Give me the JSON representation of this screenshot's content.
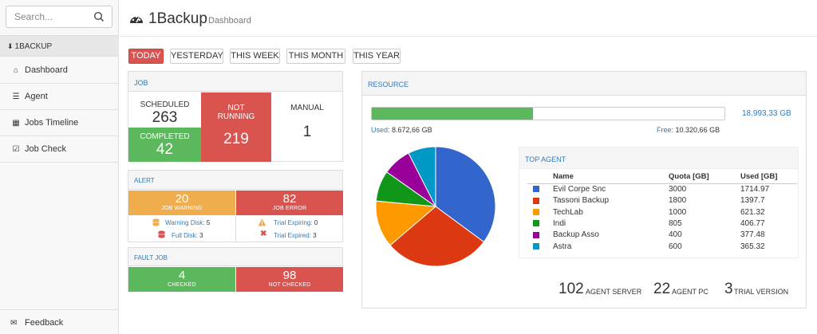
{
  "search": {
    "placeholder": "Search..."
  },
  "sidebar": {
    "brand": "1BACKUP",
    "items": [
      {
        "label": "Dashboard",
        "icon": "home-icon"
      },
      {
        "label": "Agent",
        "icon": "list-icon"
      },
      {
        "label": "Jobs Timeline",
        "icon": "grid-icon"
      },
      {
        "label": "Job Check",
        "icon": "check-square-icon"
      }
    ],
    "feedback": "Feedback"
  },
  "header": {
    "title": "1Backup",
    "subtitle": "Dashboard"
  },
  "tabs": [
    "TODAY",
    "YESTERDAY",
    "THIS WEEK",
    "THIS MONTH",
    "THIS YEAR"
  ],
  "job": {
    "title": "JOB",
    "scheduled_label": "SCHEDULED",
    "scheduled": "263",
    "completed_label": "COMPLETED",
    "completed": "42",
    "not_running_label_1": "NOT",
    "not_running_label_2": "RUNNING",
    "not_running": "219",
    "manual_label": "MANUAL",
    "manual": "1"
  },
  "alert": {
    "title": "ALERT",
    "warning": "20",
    "warning_label": "JOB WARNING",
    "error": "82",
    "error_label": "JOB ERROR",
    "warning_disk_label": "Warning Disk:",
    "warning_disk": "5",
    "full_disk_label": "Full Disk:",
    "full_disk": "3",
    "trial_expiring_label": "Trial Expiring:",
    "trial_expiring": "0",
    "trial_expired_label": "Trial Expired:",
    "trial_expired": "3"
  },
  "fault": {
    "title": "FAULT JOB",
    "checked": "4",
    "checked_label": "CHECKED",
    "not_checked": "98",
    "not_checked_label": "NOT CHECKED"
  },
  "resource": {
    "title": "RESOURCE",
    "total": "18.993,33 GB",
    "used_label": "Used:",
    "used": "8.672,66 GB",
    "free_label": "Free:",
    "free": "10.320,66 GB",
    "used_fraction": 0.4566
  },
  "top_agent": {
    "title": "TOP AGENT",
    "columns": [
      "Name",
      "Quota [GB]",
      "Used [GB]"
    ],
    "rows": [
      {
        "name": "Evil Corpe Snc",
        "quota": "3000",
        "used": "1714.97",
        "color": "#3366cc"
      },
      {
        "name": "Tassoni Backup",
        "quota": "1800",
        "used": "1397.7",
        "color": "#dc3912"
      },
      {
        "name": "TechLab",
        "quota": "1000",
        "used": "621.32",
        "color": "#ff9900"
      },
      {
        "name": "Indi",
        "quota": "805",
        "used": "406.77",
        "color": "#109618"
      },
      {
        "name": "Backup Asso",
        "quota": "400",
        "used": "377.48",
        "color": "#990099"
      },
      {
        "name": "Astra",
        "quota": "600",
        "used": "365.32",
        "color": "#0099c6"
      }
    ]
  },
  "chart_data": {
    "type": "pie",
    "categories": [
      "Evil Corpe Snc",
      "Tassoni Backup",
      "TechLab",
      "Indi",
      "Backup Asso",
      "Astra"
    ],
    "values": [
      1714.97,
      1397.7,
      621.32,
      406.77,
      377.48,
      365.32
    ],
    "colors": [
      "#3366cc",
      "#dc3912",
      "#ff9900",
      "#109618",
      "#990099",
      "#0099c6"
    ]
  },
  "stats": {
    "agent_server": "102",
    "agent_server_label": "AGENT SERVER",
    "agent_pc": "22",
    "agent_pc_label": "AGENT PC",
    "trial": "3",
    "trial_label": "TRIAL VERSION"
  }
}
